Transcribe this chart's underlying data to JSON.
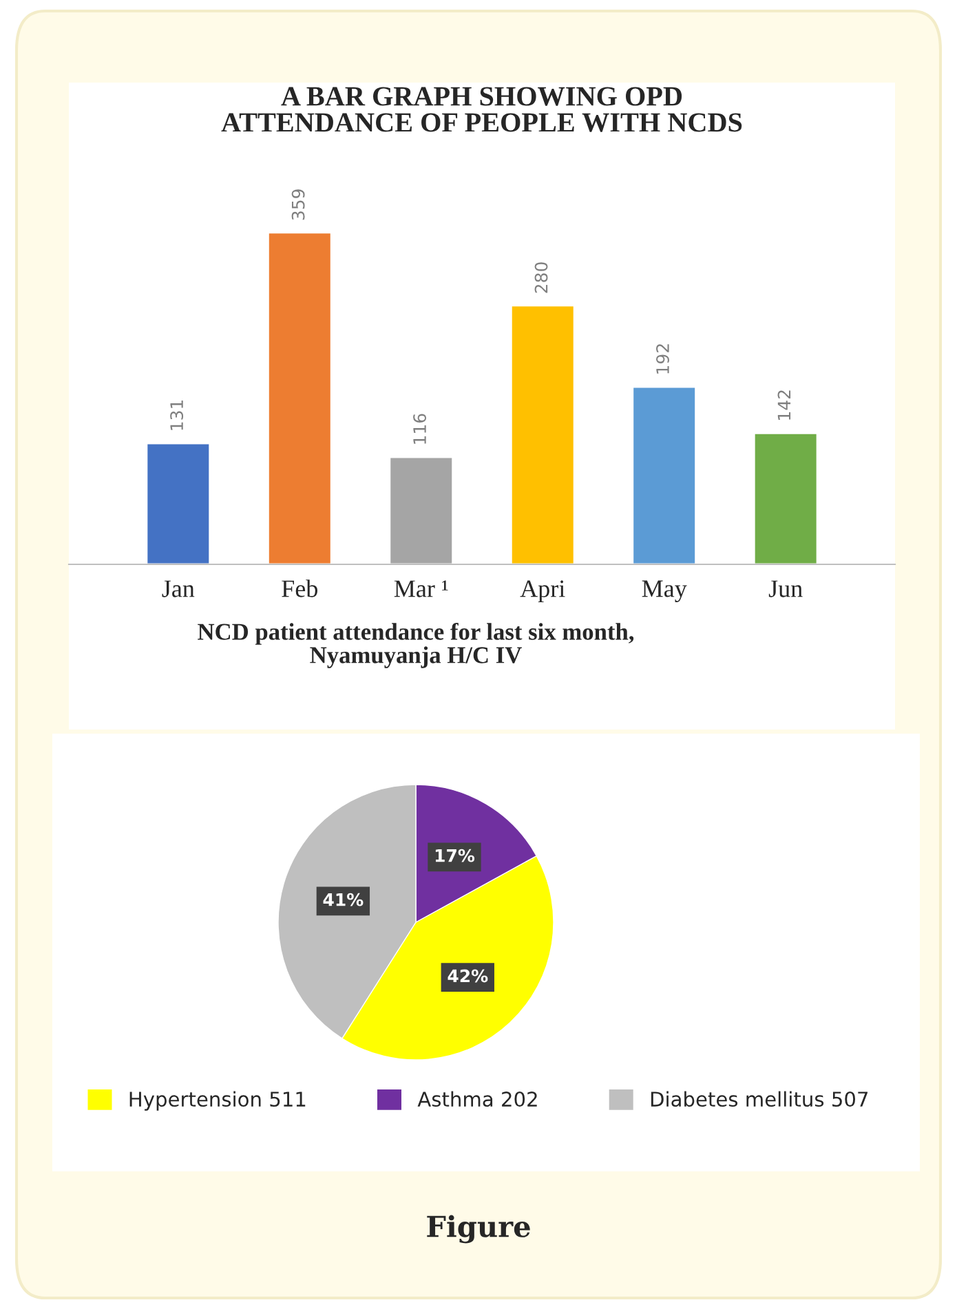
{
  "chart_data": [
    {
      "type": "bar",
      "title": "A BAR GRAPH SHOWING OPD\nATTENDANCE OF PEOPLE WITH NCDS",
      "categories": [
        "Jan",
        "Feb",
        "Mar ¹",
        "Apri",
        "May",
        "Jun"
      ],
      "values": [
        131,
        359,
        116,
        280,
        192,
        142
      ],
      "colors": [
        "#4472c4",
        "#ed7d31",
        "#a5a5a5",
        "#ffc000",
        "#5b9bd5",
        "#70ad47"
      ],
      "data_labels": true,
      "tick_labels": "x",
      "grid": false,
      "legend": false
    },
    {
      "type": "pie",
      "title": "NCD patient attendance for last six month,\nNyamuyanja H/C IV",
      "categories": [
        "Hypertension 511",
        "Asthma 202",
        "Diabetes mellitus 507"
      ],
      "values": [
        42,
        17,
        41
      ],
      "colors": [
        "#ffff00",
        "#7030a0",
        "#bfbfbf"
      ],
      "value_labels": [
        "42%",
        "17%",
        "41%"
      ],
      "legend": "bottom",
      "annotations": [
        "Figure"
      ]
    }
  ]
}
